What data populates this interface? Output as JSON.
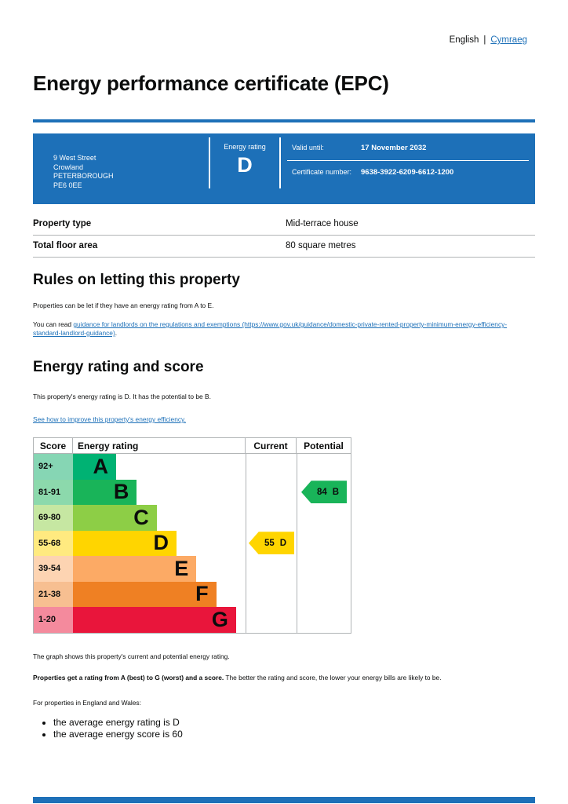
{
  "colors": {
    "govuk_blue": "#1d70b8",
    "link_blue": "#1d70b8",
    "text": "#0b0c0c",
    "border_grey": "#b1b4b6"
  },
  "lang": {
    "english": "English",
    "separator": "|",
    "cymraeg": "Cymraeg"
  },
  "title": "Energy performance certificate (EPC)",
  "banner": {
    "address_lines": [
      "9 West Street",
      "Crowland",
      "PETERBOROUGH",
      "PE6 0EE"
    ],
    "energy_rating_label": "Energy rating",
    "energy_rating_value": "D",
    "valid_until_label": "Valid until:",
    "valid_until_value": "17 November 2032",
    "certificate_number_label": "Certificate number:",
    "certificate_number_value": "9638-3922-6209-6612-1200"
  },
  "summary": {
    "rows": [
      {
        "label": "Property type",
        "value": "Mid-terrace house"
      },
      {
        "label": "Total floor area",
        "value": "80 square metres"
      }
    ]
  },
  "rules_section": {
    "heading": "Rules on letting this property",
    "paragraph1": "Properties can be let if they have an energy rating from A to E.",
    "paragraph2_prefix": "You can read ",
    "paragraph2_link": "guidance for landlords on the regulations and exemptions (https://www.gov.uk/guidance/domestic-private-rented-property-minimum-energy-efficiency-standard-landlord-guidance)",
    "paragraph2_suffix": "."
  },
  "rating_section": {
    "heading": "Energy rating and score",
    "paragraph": "This property's energy rating is D. It has the potential to be B.",
    "improve_link": "See how to improve this property's energy efficiency."
  },
  "chart_data": {
    "type": "bar",
    "title": "Energy rating and score chart",
    "headers": {
      "score": "Score",
      "rating": "Energy rating",
      "current": "Current",
      "potential": "Potential"
    },
    "categories": [
      "92+",
      "81-91",
      "69-80",
      "55-68",
      "39-54",
      "21-38",
      "1-20"
    ],
    "letters": [
      "A",
      "B",
      "C",
      "D",
      "E",
      "F",
      "G"
    ],
    "bands": [
      {
        "score_range": "92+",
        "letter": "A",
        "color": "#00b273",
        "tint": "#86d6b4",
        "bar_pct": 25
      },
      {
        "score_range": "81-91",
        "letter": "B",
        "color": "#19b459",
        "tint": "#8cd9ac",
        "bar_pct": 37
      },
      {
        "score_range": "69-80",
        "letter": "C",
        "color": "#8dce46",
        "tint": "#c6e7a2",
        "bar_pct": 48.5
      },
      {
        "score_range": "55-68",
        "letter": "D",
        "color": "#ffd500",
        "tint": "#ffea80",
        "bar_pct": 60
      },
      {
        "score_range": "39-54",
        "letter": "E",
        "color": "#fcaa65",
        "tint": "#fdd4b2",
        "bar_pct": 71.5
      },
      {
        "score_range": "21-38",
        "letter": "F",
        "color": "#ef8023",
        "tint": "#f7bf91",
        "bar_pct": 83
      },
      {
        "score_range": "1-20",
        "letter": "G",
        "color": "#e9153b",
        "tint": "#f48a9d",
        "bar_pct": 94.5
      }
    ],
    "current": {
      "score": "55",
      "letter": "D",
      "color": "#ffd500",
      "band_index": 3
    },
    "potential": {
      "score": "84",
      "letter": "B",
      "color": "#19b459",
      "band_index": 1
    }
  },
  "explanation": {
    "p1": "The graph shows this property's current and potential energy rating.",
    "p2_bold": "Properties get a rating from A (best) to G (worst) and a score.",
    "p2_rest": " The better the rating and score, the lower your energy bills are likely to be.",
    "p3": "For properties in England and Wales:",
    "bullets": [
      "the average energy rating is D",
      "the average energy score is 60"
    ]
  }
}
